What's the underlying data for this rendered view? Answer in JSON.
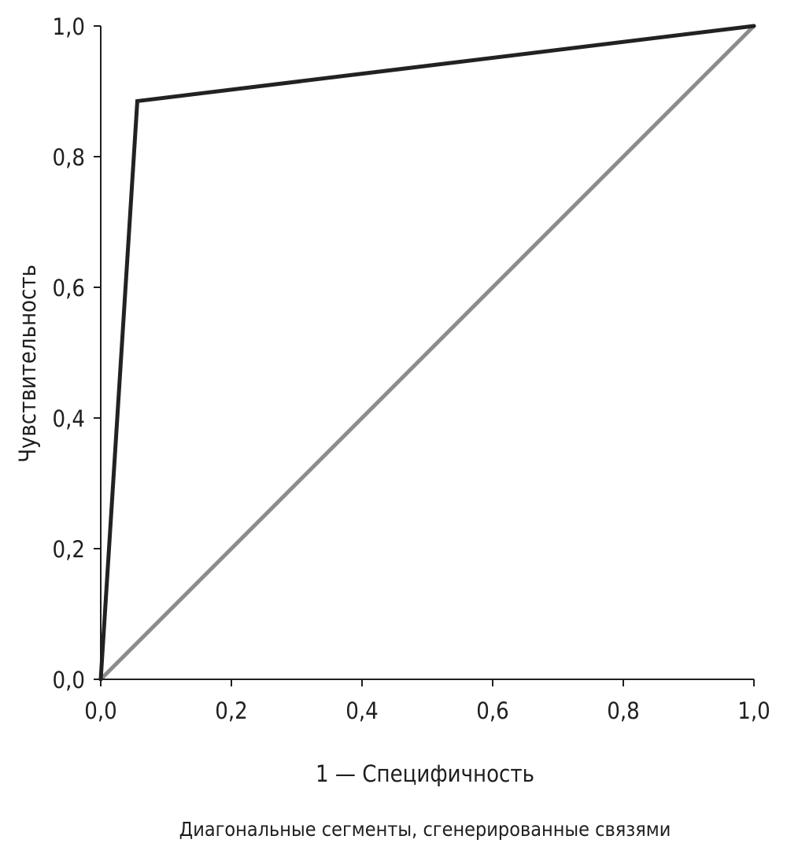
{
  "chart_data": {
    "type": "line",
    "title": "",
    "xlabel": "1 — Специфичность",
    "ylabel": "Чувствительность",
    "note": "Диагональные сегменты, сгенерированные связями",
    "xlim": [
      0,
      1
    ],
    "ylim": [
      0,
      1
    ],
    "grid": false,
    "x_ticks": [
      0,
      0.2,
      0.4,
      0.6,
      0.8,
      1.0
    ],
    "x_tick_labels": [
      "0,0",
      "0,2",
      "0,4",
      "0,6",
      "0,8",
      "1,0"
    ],
    "y_ticks": [
      0,
      0.2,
      0.4,
      0.6,
      0.8,
      1.0
    ],
    "y_tick_labels": [
      "0,0",
      "0,2",
      "0,4",
      "0,6",
      "0,8",
      "1,0"
    ],
    "series": [
      {
        "color": "#222222",
        "x": [
          0,
          0.056,
          1.0
        ],
        "y": [
          0,
          0.885,
          1.0
        ]
      },
      {
        "color": "#8c8c8c",
        "x": [
          0,
          1.0
        ],
        "y": [
          0,
          1.0
        ]
      }
    ]
  }
}
